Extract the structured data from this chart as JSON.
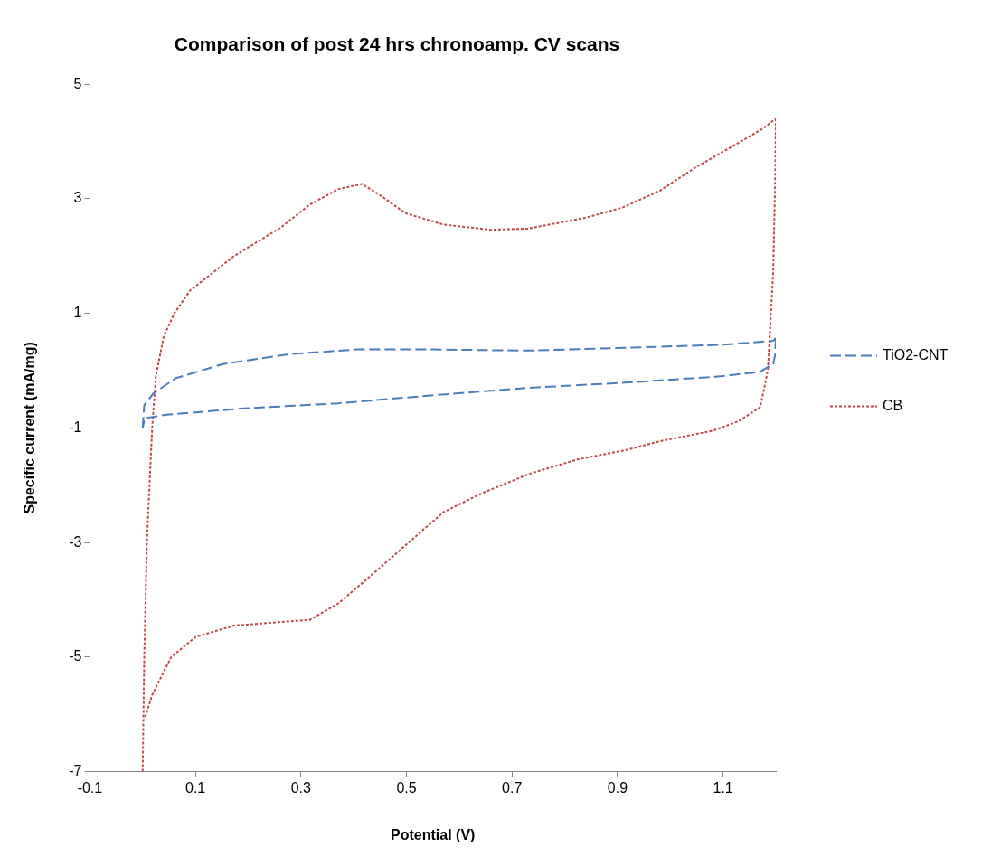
{
  "chart_data": {
    "type": "line",
    "title": "Comparison of post 24 hrs chronoamp. CV scans",
    "xlabel": "Potential (V)",
    "ylabel": "Specific current (mA/mg)",
    "xlim": [
      -0.1,
      1.2
    ],
    "xticks": [
      -0.1,
      0.1,
      0.3,
      0.5,
      0.7,
      0.9,
      1.1
    ],
    "ylim": [
      -7,
      5
    ],
    "yticks": [
      -7,
      -5,
      -3,
      -1,
      1,
      3,
      5
    ],
    "grid": false,
    "legend": "right",
    "marker": "none",
    "series": [
      {
        "name": "TiO2-CNT",
        "color": "#4a7ebb",
        "line_style": "dashed",
        "x": [
          0,
          0.003,
          0.02,
          0.063,
          0.154,
          0.28,
          0.407,
          0.55,
          0.73,
          0.914,
          1.095,
          1.195,
          1.2
        ],
        "values": [
          -1.0,
          -0.6,
          -0.4,
          -0.13,
          0.12,
          0.29,
          0.37,
          0.37,
          0.35,
          0.4,
          0.45,
          0.52,
          0.57
        ]
      },
      {
        "color": "#4a7ebb",
        "line_style": "dashed",
        "x": [
          1.2,
          1.199,
          1.195,
          1.17,
          1.095,
          0.914,
          0.73,
          0.55,
          0.371,
          0.19,
          0.045,
          0.004,
          0
        ],
        "values": [
          0.57,
          0.29,
          0.12,
          -0.02,
          -0.1,
          -0.21,
          -0.3,
          -0.43,
          -0.57,
          -0.66,
          -0.77,
          -0.83,
          -1.0
        ]
      },
      {
        "name": "CB",
        "color": "#be4b48",
        "line_style": "dotted",
        "x": [
          0,
          0.003,
          0.008,
          0.018,
          0.025,
          0.04,
          0.06,
          0.09,
          0.173,
          0.262,
          0.317,
          0.371,
          0.416,
          0.452,
          0.498,
          0.57,
          0.66,
          0.73,
          0.84,
          0.91,
          0.98,
          1.05,
          1.13,
          1.176,
          1.2
        ],
        "values": [
          -7,
          -5,
          -3,
          -1,
          -0.1,
          0.6,
          1.0,
          1.4,
          2.0,
          2.5,
          2.9,
          3.17,
          3.26,
          3.05,
          2.75,
          2.55,
          2.46,
          2.48,
          2.67,
          2.85,
          3.14,
          3.56,
          3.98,
          4.23,
          4.4
        ]
      },
      {
        "color": "#be4b48",
        "line_style": "dotted",
        "x": [
          1.2,
          1.199,
          1.195,
          1.185,
          1.18,
          1.17,
          1.13,
          1.08,
          0.986,
          0.914,
          0.824,
          0.733,
          0.643,
          0.57,
          0.498,
          0.425,
          0.371,
          0.317,
          0.244,
          0.173,
          0.1,
          0.054,
          0.018,
          0.004
        ],
        "values": [
          4.4,
          3.4,
          1.72,
          0.03,
          -0.22,
          -0.64,
          -0.88,
          -1.05,
          -1.22,
          -1.39,
          -1.55,
          -1.8,
          -2.14,
          -2.47,
          -3.05,
          -3.64,
          -4.06,
          -4.35,
          -4.4,
          -4.45,
          -4.65,
          -5.0,
          -5.66,
          -6.08
        ]
      }
    ]
  }
}
